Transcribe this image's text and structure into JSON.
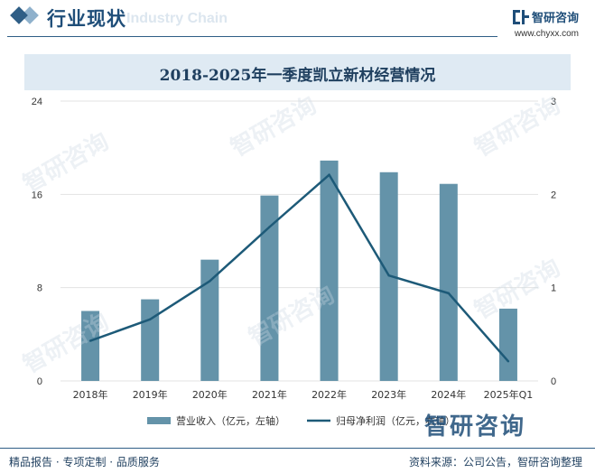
{
  "header": {
    "section_title": "行业现状",
    "ghost_text": "Industry Chain",
    "brand_name": "智研咨询",
    "brand_url": "www.chyxx.com"
  },
  "watermark_text": "智研咨询",
  "footer": {
    "left": "精品报告 · 专项定制 · 品质服务",
    "right": "资料来源：公司公告，智研咨询整理"
  },
  "colors": {
    "bar": "#6493a9",
    "line": "#1d5a78",
    "grid": "#e3e3e3",
    "accent": "#1f4e79"
  },
  "chart_data": {
    "type": "bar",
    "title": "2018-2025年一季度凯立新材经营情况",
    "categories": [
      "2018年",
      "2019年",
      "2020年",
      "2021年",
      "2022年",
      "2023年",
      "2024年",
      "2025年Q1"
    ],
    "series": [
      {
        "name": "营业收入（亿元，左轴）",
        "type": "bar",
        "axis": "left",
        "values": [
          6.0,
          7.0,
          10.4,
          15.9,
          18.9,
          17.9,
          16.9,
          6.2
        ]
      },
      {
        "name": "归母净利润（亿元，右轴）",
        "type": "line",
        "axis": "right",
        "values": [
          0.43,
          0.66,
          1.07,
          1.65,
          2.21,
          1.13,
          0.94,
          0.21
        ]
      }
    ],
    "y_left": {
      "ticks": [
        "0",
        "8",
        "16",
        "24"
      ],
      "ylim": [
        0,
        24
      ]
    },
    "y_right": {
      "ticks": [
        "0",
        "1",
        "2",
        "3"
      ],
      "ylim": [
        0,
        3
      ]
    },
    "grid": true,
    "legend": "bottom"
  }
}
